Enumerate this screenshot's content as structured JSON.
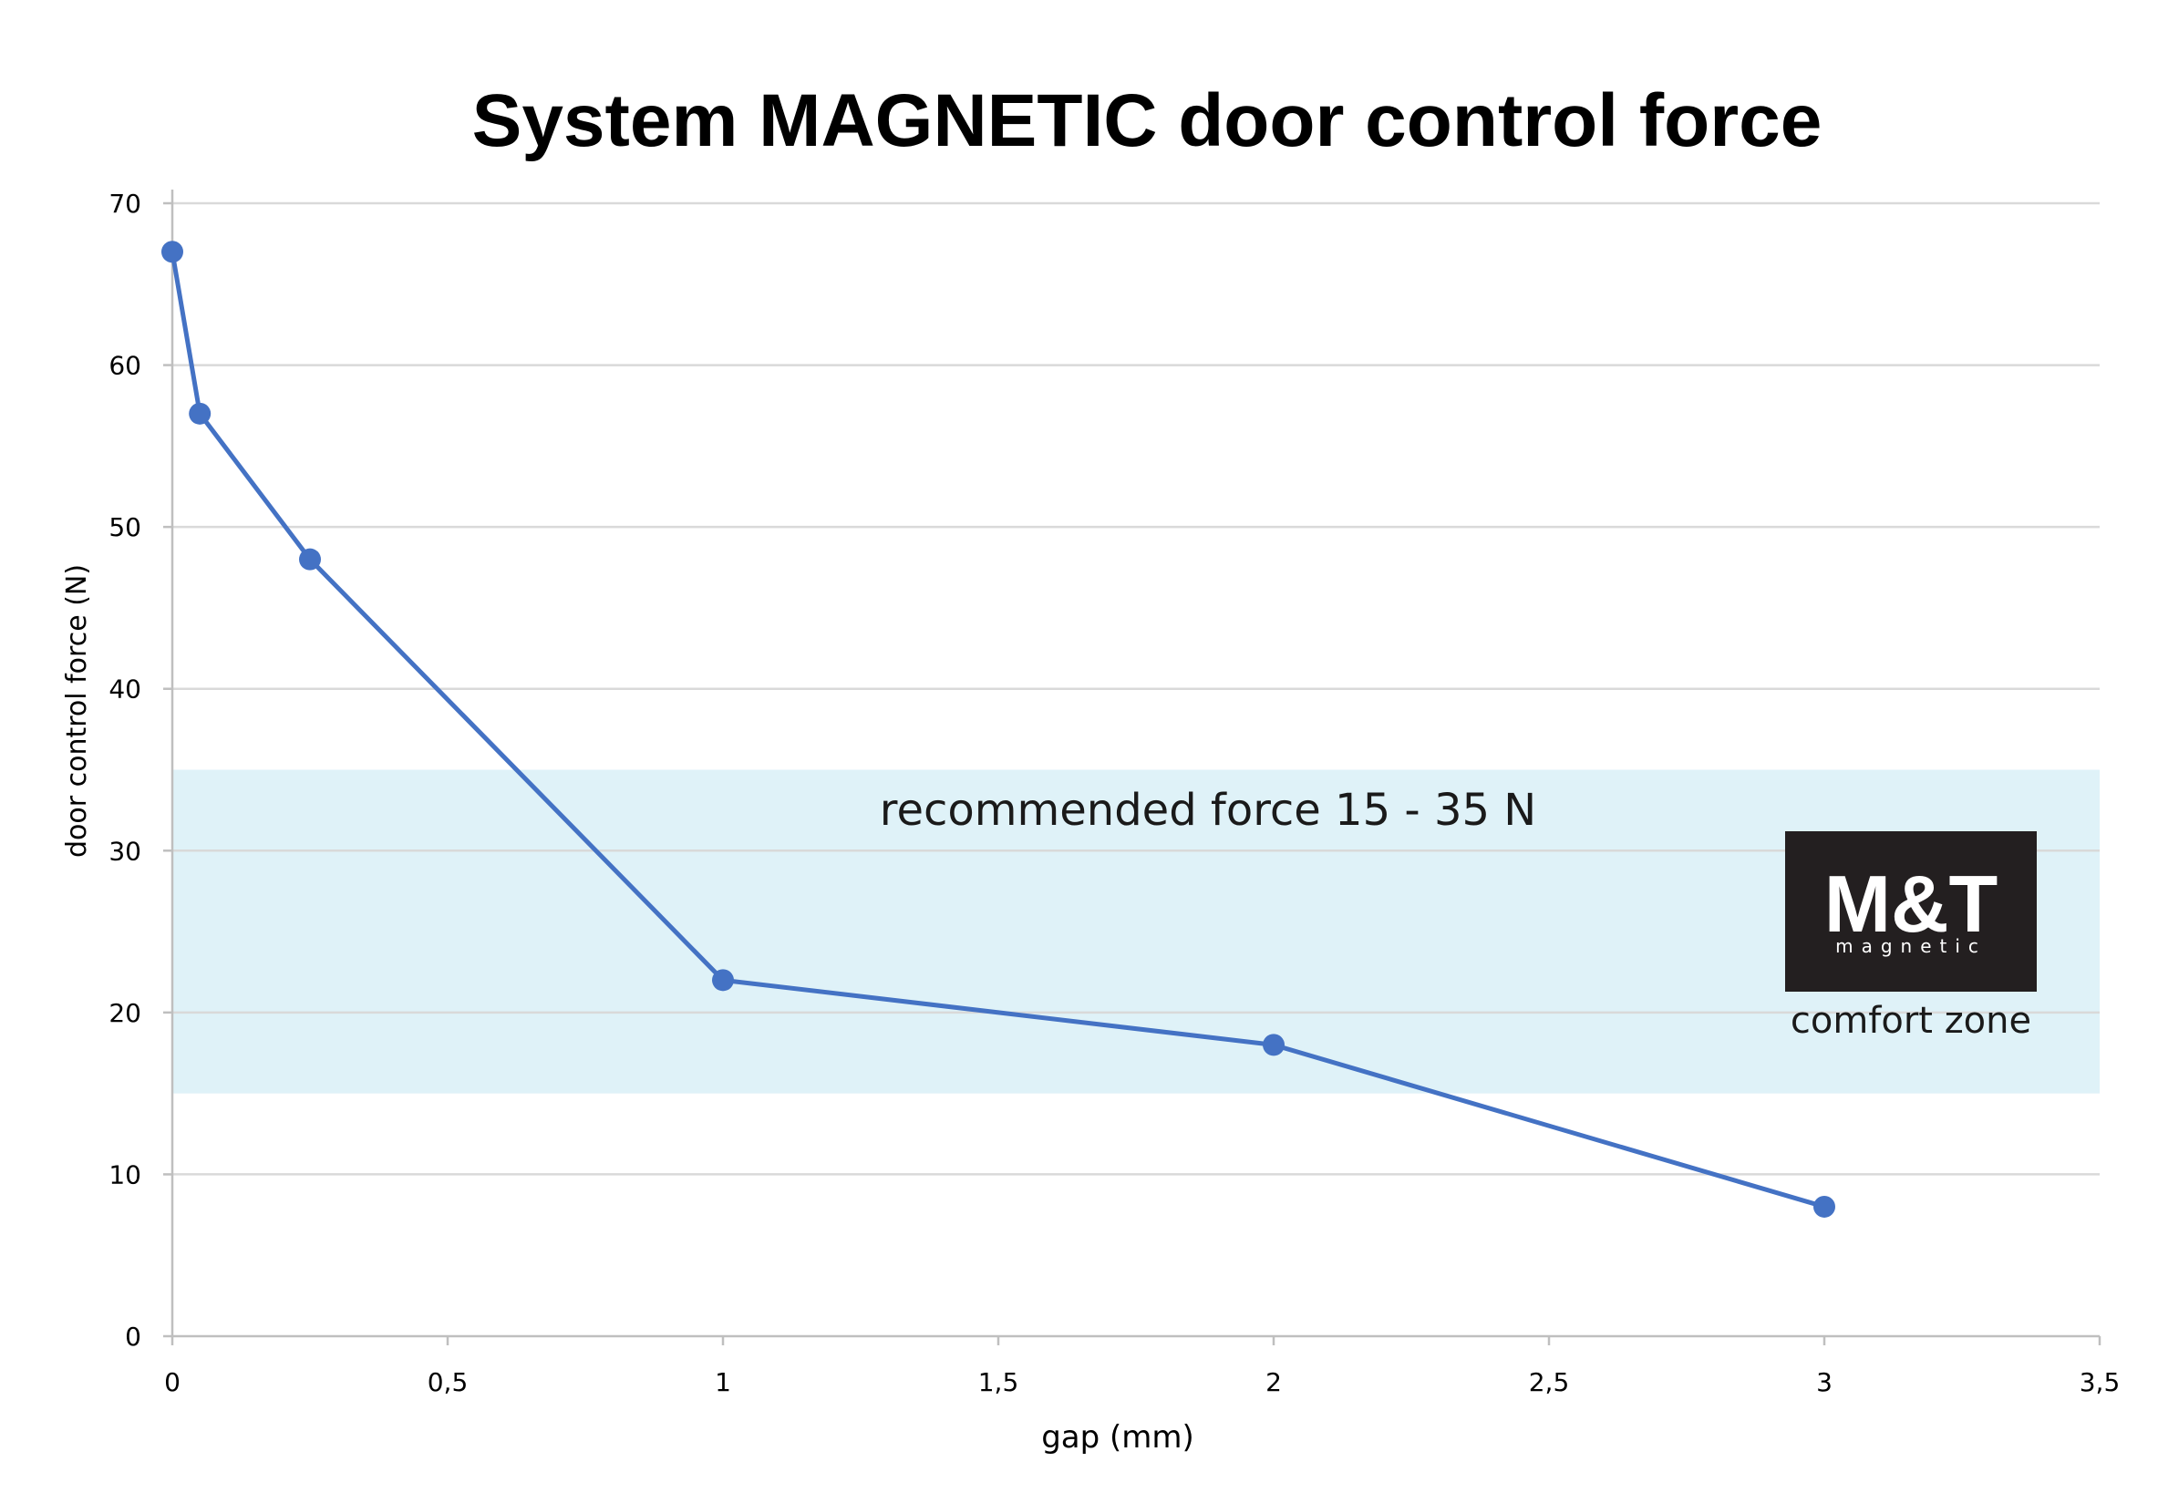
{
  "chart_data": {
    "type": "line",
    "title": "System MAGNETIC door control force",
    "xlabel": "gap (mm)",
    "ylabel": "door control force (N)",
    "xlim": [
      0,
      3.5
    ],
    "ylim": [
      0,
      70
    ],
    "x_ticks": [
      0,
      0.5,
      1,
      1.5,
      2,
      2.5,
      3,
      3.5
    ],
    "x_tick_labels": [
      "0",
      "0,5",
      "1",
      "1,5",
      "2",
      "2,5",
      "3",
      "3,5"
    ],
    "y_ticks": [
      0,
      10,
      20,
      30,
      40,
      50,
      60,
      70
    ],
    "y_tick_labels": [
      "0",
      "10",
      "20",
      "30",
      "40",
      "50",
      "60",
      "70"
    ],
    "grid": true,
    "series": [
      {
        "x": [
          0,
          0.05,
          0.25,
          1,
          2,
          3
        ],
        "y": [
          67,
          57,
          48,
          22,
          18,
          8
        ],
        "color": "#4472c4"
      }
    ],
    "band": {
      "ymin": 15,
      "ymax": 35,
      "label": "recommended force 15 - 35 N",
      "color": "#dff2f8"
    },
    "logo": {
      "main": "M&T",
      "sub": "magnetic",
      "caption": "comfort zone"
    }
  }
}
